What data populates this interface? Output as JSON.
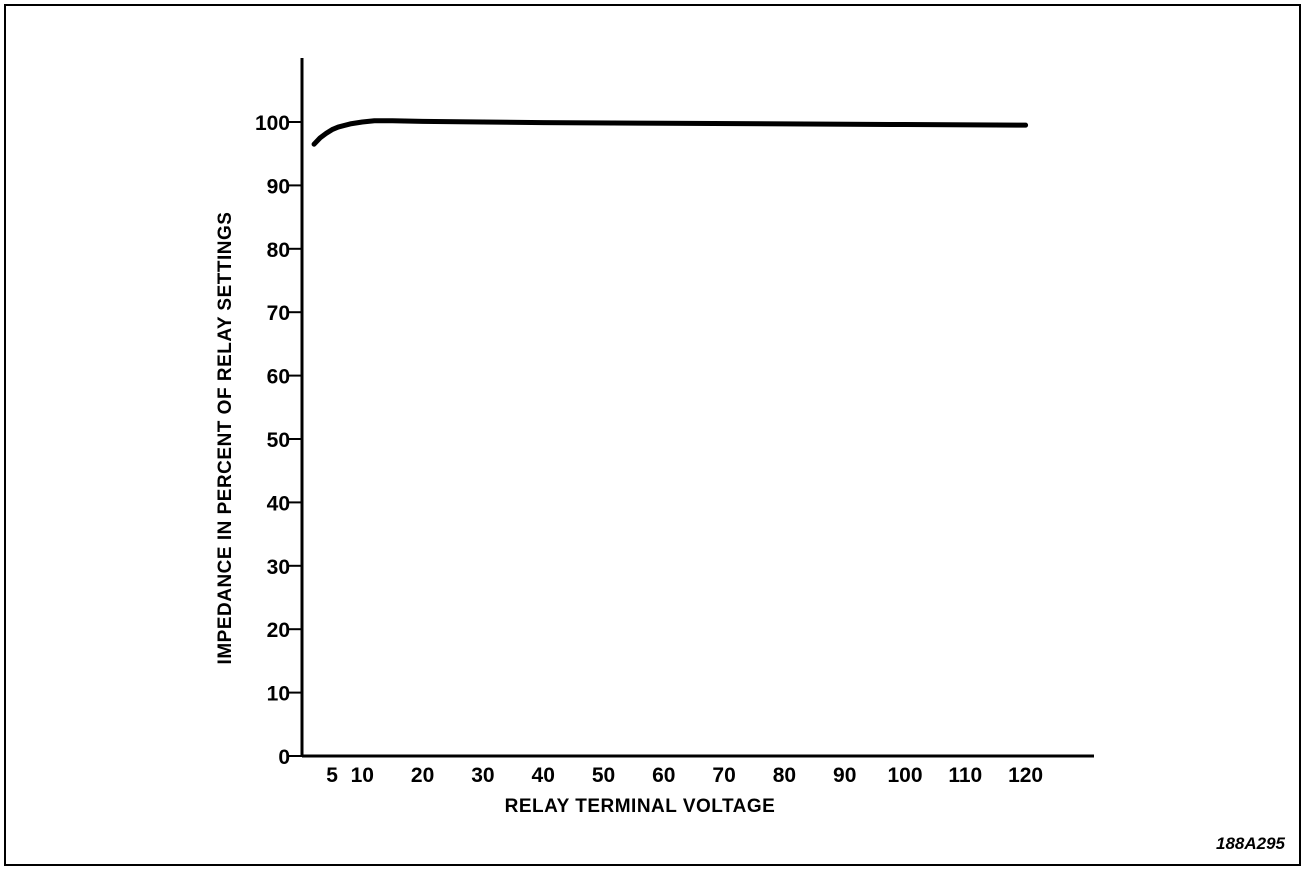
{
  "figure_id": "188A295",
  "chart_data": {
    "type": "line",
    "title": "",
    "xlabel": "RELAY TERMINAL VOLTAGE",
    "ylabel": "IMPEDANCE IN PERCENT OF RELAY SETTINGS",
    "x_ticks": [
      5,
      10,
      20,
      30,
      40,
      50,
      60,
      70,
      80,
      90,
      100,
      110,
      120
    ],
    "y_ticks": [
      0,
      10,
      20,
      30,
      40,
      50,
      60,
      70,
      80,
      90,
      100
    ],
    "xlim": [
      0,
      120
    ],
    "ylim": [
      0,
      100
    ],
    "grid": false,
    "series": [
      {
        "x": [
          2,
          3,
          4,
          5,
          6,
          8,
          10,
          12,
          15,
          20,
          30,
          40,
          60,
          80,
          100,
          120
        ],
        "y": [
          96.5,
          97.5,
          98.2,
          98.8,
          99.2,
          99.7,
          100,
          100.2,
          100.2,
          100.1,
          100,
          99.9,
          99.8,
          99.7,
          99.6,
          99.5
        ]
      }
    ]
  }
}
